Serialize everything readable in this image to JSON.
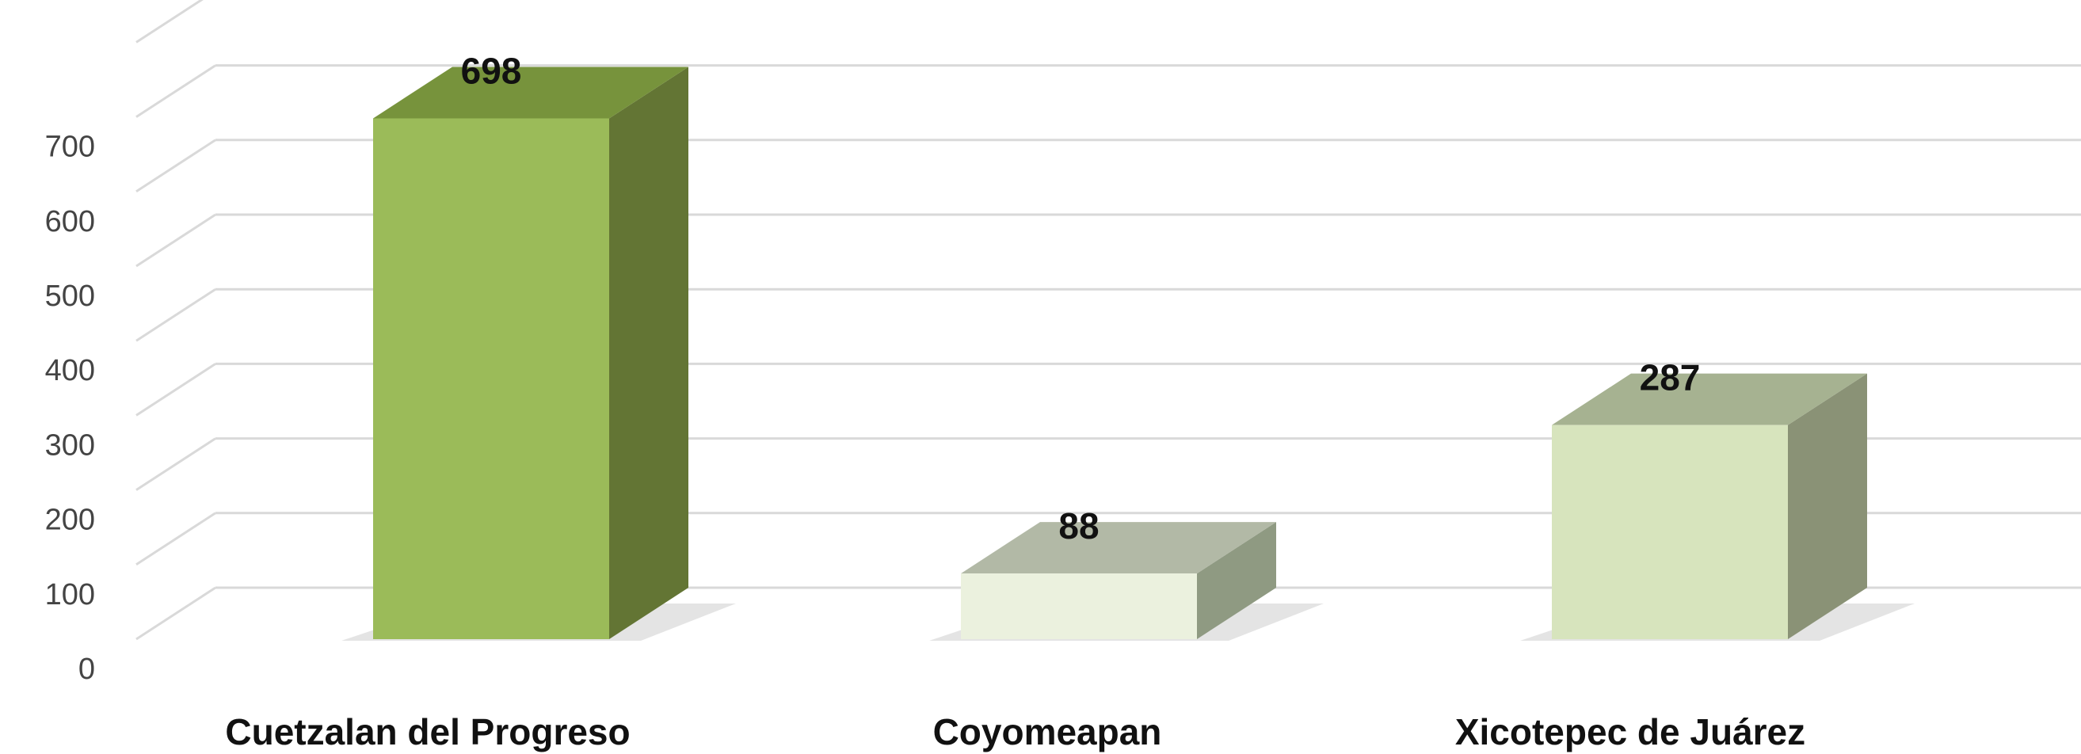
{
  "chart_data": {
    "type": "bar",
    "categories": [
      "Cuetzalan del Progreso",
      "Coyomeapan",
      "Xicotepec de Juárez"
    ],
    "values": [
      698,
      88,
      287
    ],
    "data_labels": [
      "698",
      "88",
      "287"
    ],
    "title": "",
    "xlabel": "",
    "ylabel": "",
    "ylim": [
      0,
      800
    ],
    "yticks": [
      "0",
      "100",
      "200",
      "300",
      "400",
      "500",
      "600",
      "700"
    ],
    "grid": true,
    "legend": "none",
    "three_d": true,
    "colors": [
      {
        "front": "#9bbb59",
        "side": "#637534",
        "top": "#77933c"
      },
      {
        "front": "#ebf1de",
        "side": "#8f9a82",
        "top": "#b2b9a6"
      },
      {
        "front": "#d7e4bd",
        "side": "#8a9276",
        "top": "#a6b291"
      }
    ],
    "gridline_color": "#d9d9d9"
  }
}
